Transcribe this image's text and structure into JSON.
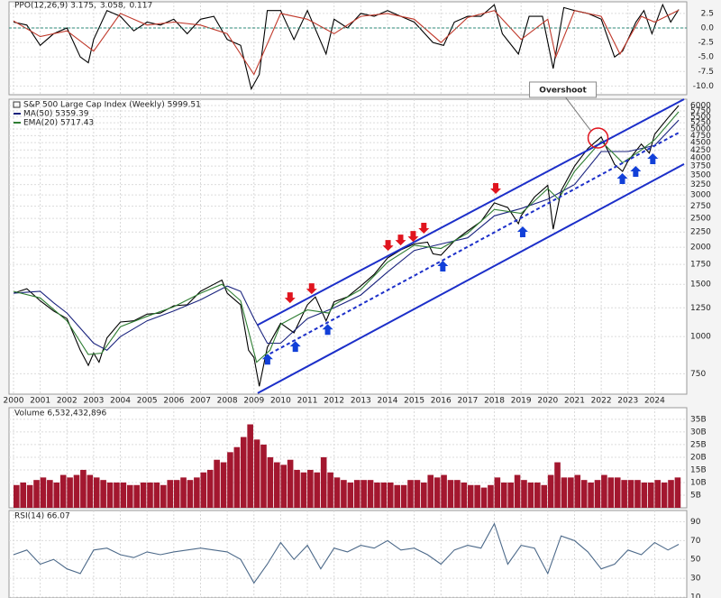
{
  "chart_data": [
    {
      "type": "line",
      "legend": [
        {
          "text": "PPO(12,26,9) 3.175,",
          "color": "#000000"
        },
        {
          "text": "3.058,",
          "color": "#c0392b"
        },
        {
          "text": "0.117",
          "color": "#2e8b7a"
        }
      ],
      "ylim": [
        -11.5,
        4.5
      ],
      "yticks": [
        2.5,
        {
          "value": 0,
          "label": "0.0"
        },
        -2.5,
        {
          "value": -5,
          "label": "-5.0"
        },
        -7.5,
        {
          "value": -10,
          "label": "-10.0"
        }
      ],
      "series": [
        {
          "color": "#000000",
          "x": [
            2000,
            2000.5,
            2001,
            2001.5,
            2002,
            2002.5,
            2002.8,
            2003,
            2003.5,
            2004,
            2004.5,
            2005,
            2005.5,
            2006,
            2006.5,
            2007,
            2007.5,
            2008,
            2008.5,
            2008.9,
            2009.2,
            2009.5,
            2010,
            2010.5,
            2011,
            2011.7,
            2012,
            2012.5,
            2013,
            2013.5,
            2014,
            2014.5,
            2015,
            2015.7,
            2016.1,
            2016.5,
            2017,
            2017.5,
            2018,
            2018.3,
            2018.9,
            2019.3,
            2019.8,
            2020.2,
            2020.6,
            2021,
            2021.5,
            2022,
            2022.5,
            2022.8,
            2023.3,
            2023.6,
            2023.9,
            2024.3,
            2024.6,
            2024.9
          ],
          "values": [
            1,
            0.5,
            -3,
            -1,
            0,
            -5,
            -6,
            -2,
            3,
            2,
            -0.5,
            1,
            0.5,
            1.5,
            -1,
            1.5,
            2,
            -2,
            -3,
            -10.5,
            -8,
            3,
            3,
            -2,
            3,
            -4.5,
            1.5,
            0,
            2.5,
            2,
            3,
            2,
            1,
            -2.5,
            -3,
            1,
            2,
            2,
            4,
            -1,
            -4.5,
            2,
            2,
            -7,
            3.5,
            3,
            2.5,
            1.5,
            -5,
            -4,
            1,
            3,
            -1,
            4,
            1,
            3.175
          ]
        },
        {
          "color": "#c0392b",
          "x": [
            2000,
            2001,
            2002,
            2003,
            2004,
            2005,
            2006,
            2007,
            2008,
            2009,
            2010,
            2011,
            2012,
            2013,
            2014,
            2015,
            2016,
            2017,
            2018,
            2019,
            2020,
            2020.3,
            2021,
            2022,
            2022.7,
            2023.5,
            2024,
            2024.9
          ],
          "values": [
            1.2,
            -1.5,
            -0.5,
            -4,
            2.5,
            0.5,
            1,
            0.5,
            -1,
            -8,
            2.5,
            1.5,
            -1,
            2,
            2.5,
            1.5,
            -2.5,
            1.8,
            3,
            -2,
            1.5,
            -5,
            3,
            2,
            -4.5,
            2,
            1,
            3.058
          ]
        }
      ]
    },
    {
      "type": "line",
      "title": "S&P 500 Large Cap Index (Weekly) 5999.51",
      "log": true,
      "xlim": [
        2000,
        2025.1
      ],
      "xticks": [
        2000,
        2001,
        2002,
        2003,
        2004,
        2005,
        2006,
        2007,
        2008,
        2009,
        2010,
        2011,
        2012,
        2013,
        2014,
        2015,
        2016,
        2017,
        2018,
        2019,
        2020,
        2021,
        2022,
        2023,
        2024
      ],
      "ylim": [
        640,
        6300
      ],
      "yticks": [
        750,
        1000,
        1250,
        1500,
        1750,
        2000,
        2250,
        2500,
        2750,
        3000,
        3250,
        3500,
        3750,
        4000,
        4250,
        4500,
        4750,
        5000,
        5250,
        5500,
        5750,
        6000
      ],
      "series": [
        {
          "color": "#000000",
          "x": [
            2000,
            2000.5,
            2001,
            2001.5,
            2002,
            2002.5,
            2002.8,
            2003,
            2003.2,
            2003.5,
            2004,
            2004.5,
            2005,
            2005.5,
            2006,
            2006.5,
            2007,
            2007.5,
            2007.8,
            2008,
            2008.5,
            2008.8,
            2009,
            2009.2,
            2009.5,
            2010,
            2010.5,
            2011,
            2011.3,
            2011.7,
            2012,
            2012.5,
            2013,
            2013.5,
            2014,
            2014.5,
            2015,
            2015.5,
            2015.7,
            2016,
            2016.5,
            2017,
            2017.5,
            2018,
            2018.5,
            2018.9,
            2019,
            2019.5,
            2020,
            2020.2,
            2020.5,
            2021,
            2021.5,
            2022,
            2022.5,
            2022.8,
            2023,
            2023.5,
            2023.8,
            2024,
            2024.5,
            2024.9
          ],
          "values": [
            1400,
            1450,
            1320,
            1220,
            1150,
            900,
            800,
            880,
            820,
            990,
            1120,
            1130,
            1190,
            1200,
            1270,
            1280,
            1420,
            1500,
            1550,
            1400,
            1280,
            900,
            850,
            680,
            920,
            1110,
            1030,
            1280,
            1360,
            1130,
            1310,
            1360,
            1480,
            1620,
            1840,
            1960,
            2050,
            2080,
            1900,
            1880,
            2100,
            2270,
            2440,
            2820,
            2720,
            2400,
            2550,
            2950,
            3230,
            2300,
            3100,
            3750,
            4300,
            4700,
            3800,
            3600,
            3900,
            4450,
            4150,
            4800,
            5450,
            5999.51
          ]
        },
        {
          "name": "MA(50) 5359.39",
          "color": "#1a237e",
          "x": [
            2000,
            2001,
            2001.5,
            2002,
            2003,
            2003.5,
            2004,
            2005,
            2006,
            2007,
            2008,
            2008.5,
            2009,
            2009.5,
            2010,
            2011,
            2012,
            2013,
            2014,
            2015,
            2016,
            2017,
            2018,
            2019,
            2020,
            2021,
            2022,
            2023,
            2024,
            2024.9
          ],
          "values": [
            1400,
            1420,
            1300,
            1200,
            950,
            900,
            1000,
            1130,
            1220,
            1330,
            1480,
            1420,
            1150,
            950,
            950,
            1150,
            1250,
            1380,
            1650,
            1950,
            2050,
            2150,
            2550,
            2700,
            2900,
            3250,
            4200,
            4200,
            4400,
            5359.39
          ]
        },
        {
          "name": "EMA(20) 5717.43",
          "color": "#2e7d32",
          "x": [
            2000,
            2001,
            2002,
            2002.8,
            2003.3,
            2004,
            2005,
            2006,
            2007,
            2007.8,
            2008.5,
            2009.1,
            2009.6,
            2010,
            2011,
            2011.8,
            2012,
            2013,
            2014,
            2015,
            2016,
            2017,
            2018,
            2019,
            2020,
            2020.4,
            2021,
            2022,
            2022.8,
            2023.5,
            2024,
            2024.9
          ],
          "values": [
            1420,
            1350,
            1130,
            870,
            880,
            1080,
            1170,
            1260,
            1400,
            1500,
            1320,
            820,
            900,
            1100,
            1230,
            1200,
            1280,
            1440,
            1780,
            2030,
            1980,
            2230,
            2680,
            2600,
            3150,
            2900,
            3600,
            4550,
            3850,
            4250,
            4600,
            5717.43
          ]
        }
      ],
      "trendlines": [
        {
          "color": "#1c2fc9",
          "dashed": false,
          "x": [
            2009.14,
            2025.1
          ],
          "y": [
            1095,
            6300
          ]
        },
        {
          "color": "#1c2fc9",
          "dashed": false,
          "x": [
            2009.14,
            2025.1
          ],
          "y": [
            645,
            3810
          ]
        },
        {
          "color": "#1c2fc9",
          "dashed": true,
          "x": [
            2009.6,
            2024.9
          ],
          "y": [
            876,
            4860
          ]
        }
      ],
      "sell_arrows": {
        "color": "#e0141e",
        "x": [
          2010.35,
          2011.16,
          2014.02,
          2014.49,
          2014.96,
          2015.36,
          2018.05
        ],
        "y": [
          1351,
          1449,
          2027,
          2115,
          2174,
          2318,
          3153
        ]
      },
      "buy_arrows": {
        "color": "#1240d8",
        "x": [
          2009.51,
          2010.55,
          2011.76,
          2016.07,
          2019.06,
          2022.79,
          2023.29,
          2023.93
        ],
        "y": [
          839,
          926,
          1057,
          1727,
          2254,
          3405,
          3600,
          3970
        ]
      },
      "annotation": {
        "text": "Overshoot",
        "color": "#e0141e",
        "x": 2021.88,
        "y": 4665
      }
    },
    {
      "type": "bar",
      "title": "Volume 6,532,432,896",
      "ylim": [
        0,
        39.6
      ],
      "yticks": [
        {
          "value": 5,
          "label": "5B"
        },
        {
          "value": 10,
          "label": "10B"
        },
        {
          "value": 15,
          "label": "15B"
        },
        {
          "value": 20,
          "label": "20B"
        },
        {
          "value": 25,
          "label": "25B"
        },
        {
          "value": 30,
          "label": "30B"
        },
        {
          "value": 35,
          "label": "35B"
        }
      ],
      "series": [
        {
          "color": "#a3172f",
          "x": [
            2000,
            2000.25,
            2000.5,
            2000.75,
            2001,
            2001.25,
            2001.5,
            2001.75,
            2002,
            2002.25,
            2002.5,
            2002.75,
            2003,
            2003.25,
            2003.5,
            2003.75,
            2004,
            2004.25,
            2004.5,
            2004.75,
            2005,
            2005.25,
            2005.5,
            2005.75,
            2006,
            2006.25,
            2006.5,
            2006.75,
            2007,
            2007.25,
            2007.5,
            2007.75,
            2008,
            2008.25,
            2008.5,
            2008.75,
            2009,
            2009.25,
            2009.5,
            2009.75,
            2010,
            2010.25,
            2010.5,
            2010.75,
            2011,
            2011.25,
            2011.5,
            2011.75,
            2012,
            2012.25,
            2012.5,
            2012.75,
            2013,
            2013.25,
            2013.5,
            2013.75,
            2014,
            2014.25,
            2014.5,
            2014.75,
            2015,
            2015.25,
            2015.5,
            2015.75,
            2016,
            2016.25,
            2016.5,
            2016.75,
            2017,
            2017.25,
            2017.5,
            2017.75,
            2018,
            2018.25,
            2018.5,
            2018.75,
            2019,
            2019.25,
            2019.5,
            2019.75,
            2020,
            2020.25,
            2020.5,
            2020.75,
            2021,
            2021.25,
            2021.5,
            2021.75,
            2022,
            2022.25,
            2022.5,
            2022.75,
            2023,
            2023.25,
            2023.5,
            2023.75,
            2024,
            2024.25,
            2024.5,
            2024.75
          ],
          "values": [
            9,
            10,
            9,
            11,
            12,
            11,
            10,
            13,
            12,
            13,
            15,
            13,
            12,
            11,
            10,
            10,
            10,
            9,
            9,
            10,
            10,
            10,
            9,
            11,
            11,
            12,
            11,
            12,
            14,
            15,
            19,
            18,
            22,
            24,
            28,
            33,
            27,
            25,
            20,
            18,
            17,
            19,
            15,
            14,
            15,
            14,
            20,
            14,
            12,
            11,
            10,
            11,
            11,
            11,
            10,
            10,
            10,
            9,
            9,
            11,
            11,
            10,
            13,
            12,
            13,
            11,
            11,
            10,
            9,
            9,
            8,
            9,
            12,
            10,
            10,
            13,
            11,
            10,
            10,
            9,
            13,
            18,
            12,
            12,
            13,
            11,
            10,
            11,
            13,
            12,
            12,
            11,
            11,
            11,
            10,
            10,
            11,
            10,
            11,
            12
          ]
        }
      ]
    },
    {
      "type": "line",
      "title": "RSI(14) 66.07",
      "ylim": [
        9,
        102
      ],
      "yticks": [
        90,
        70,
        50,
        30,
        10
      ],
      "series": [
        {
          "color": "#4d6a8a",
          "x": [
            2000,
            2000.5,
            2001,
            2001.5,
            2002,
            2002.5,
            2003,
            2003.5,
            2004,
            2004.5,
            2005,
            2005.5,
            2006,
            2006.5,
            2007,
            2007.5,
            2008,
            2008.5,
            2009,
            2009.5,
            2010,
            2010.5,
            2011,
            2011.5,
            2012,
            2012.5,
            2013,
            2013.5,
            2014,
            2014.5,
            2015,
            2015.5,
            2016,
            2016.5,
            2017,
            2017.5,
            2018,
            2018.5,
            2019,
            2019.5,
            2020,
            2020.5,
            2021,
            2021.5,
            2022,
            2022.5,
            2023,
            2023.5,
            2024,
            2024.5,
            2024.9
          ],
          "values": [
            55,
            60,
            45,
            50,
            40,
            35,
            60,
            62,
            55,
            52,
            58,
            55,
            58,
            60,
            62,
            60,
            58,
            50,
            25,
            45,
            68,
            50,
            65,
            40,
            62,
            58,
            65,
            62,
            70,
            60,
            62,
            55,
            45,
            60,
            65,
            62,
            88,
            45,
            65,
            62,
            35,
            75,
            70,
            58,
            40,
            45,
            60,
            55,
            68,
            60,
            66.07
          ]
        }
      ]
    }
  ]
}
